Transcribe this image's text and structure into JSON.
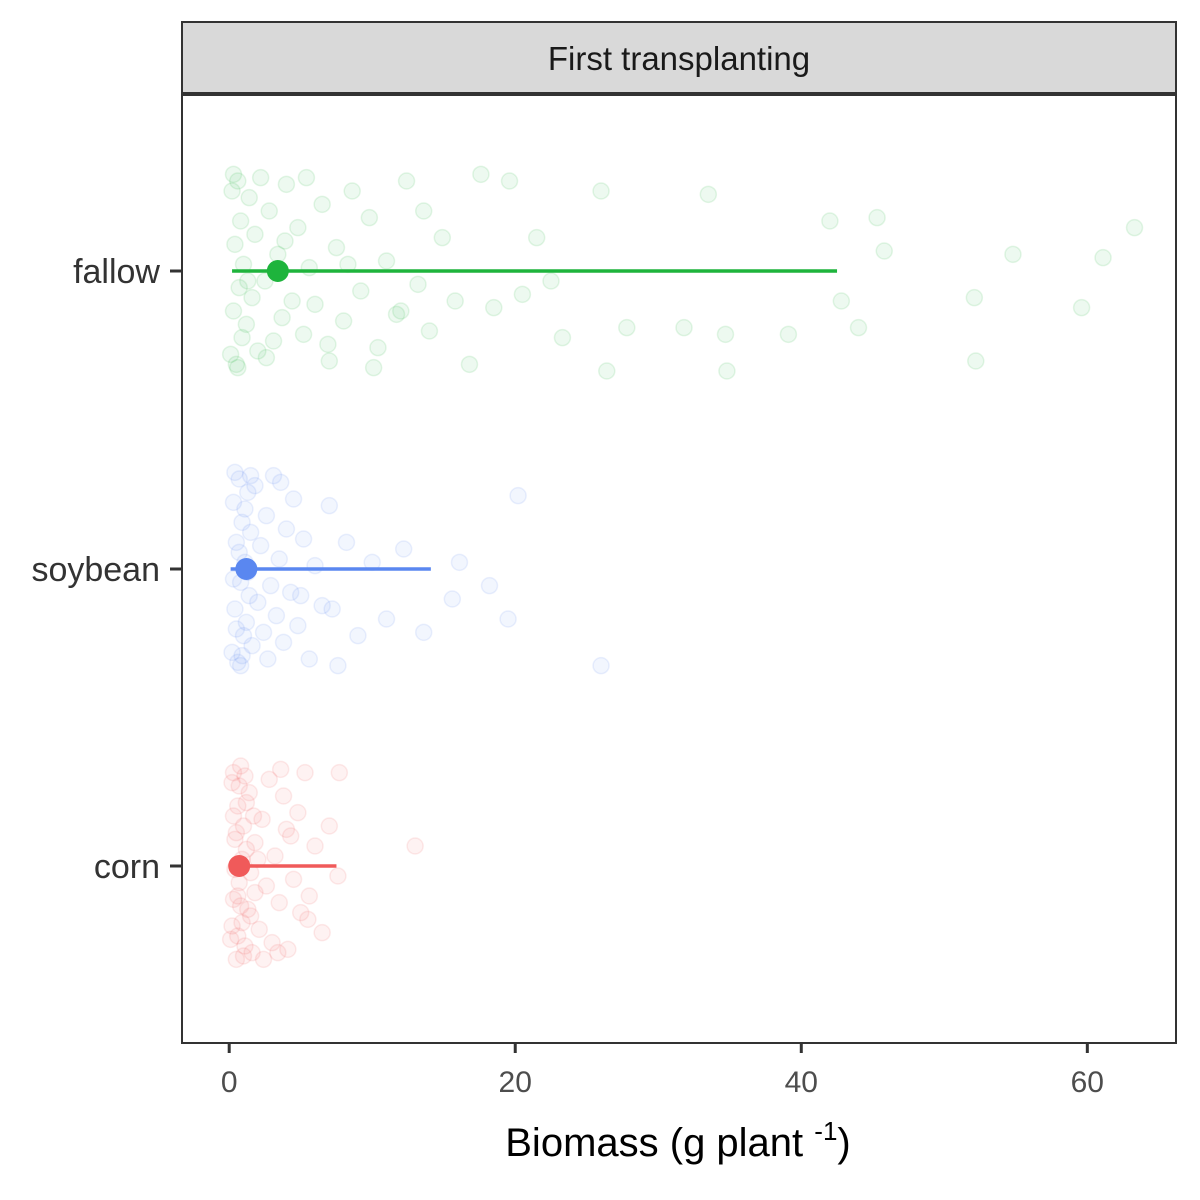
{
  "chart_data": {
    "type": "scatter",
    "facet_title": "First transplanting",
    "xlabel_main": "Biomass (g plant ",
    "xlabel_sup": "-1",
    "xlabel_close": ")",
    "ylabel": "",
    "xlim": [
      -3.3,
      66.2
    ],
    "xticks": [
      0,
      20,
      40,
      60
    ],
    "xtick_labels": [
      "0",
      "20",
      "40",
      "60"
    ],
    "categories": [
      "corn",
      "soybean",
      "fallow"
    ],
    "colors": {
      "corn": "#F05A5A",
      "soybean": "#5A87F0",
      "fallow": "#1EB43C"
    },
    "grid": false,
    "legend": "none",
    "series": [
      {
        "category": "corn",
        "median": 0.7,
        "interval": [
          0.3,
          7.5
        ],
        "points": [
          [
            0.1,
            0.22
          ],
          [
            0.2,
            -0.25
          ],
          [
            0.3,
            0.1
          ],
          [
            0.4,
            -0.08
          ],
          [
            0.5,
            0.28
          ],
          [
            0.6,
            -0.18
          ],
          [
            0.7,
            0.05
          ],
          [
            0.8,
            -0.3
          ],
          [
            0.9,
            0.17
          ],
          [
            1.0,
            -0.12
          ],
          [
            1.1,
            0.24
          ],
          [
            1.2,
            -0.05
          ],
          [
            1.3,
            0.13
          ],
          [
            1.4,
            -0.22
          ],
          [
            1.5,
            0.02
          ],
          [
            1.6,
            0.26
          ],
          [
            1.7,
            -0.15
          ],
          [
            1.8,
            0.08
          ],
          [
            0.2,
            0.18
          ],
          [
            0.3,
            -0.28
          ],
          [
            0.4,
            0.01
          ],
          [
            0.5,
            -0.1
          ],
          [
            0.6,
            0.21
          ],
          [
            0.7,
            -0.24
          ],
          [
            0.8,
            0.12
          ],
          [
            0.9,
            -0.02
          ],
          [
            1.0,
            0.27
          ],
          [
            1.2,
            -0.19
          ],
          [
            1.5,
            0.15
          ],
          [
            1.8,
            -0.07
          ],
          [
            2.1,
            0.19
          ],
          [
            2.3,
            -0.14
          ],
          [
            2.6,
            0.06
          ],
          [
            2.8,
            -0.26
          ],
          [
            3.0,
            0.23
          ],
          [
            3.2,
            -0.03
          ],
          [
            3.5,
            0.11
          ],
          [
            3.8,
            -0.21
          ],
          [
            4.1,
            0.25
          ],
          [
            4.3,
            -0.09
          ],
          [
            4.5,
            0.04
          ],
          [
            4.8,
            -0.16
          ],
          [
            5.0,
            0.14
          ],
          [
            5.3,
            -0.28
          ],
          [
            5.6,
            0.09
          ],
          [
            6.0,
            -0.06
          ],
          [
            6.5,
            0.2
          ],
          [
            7.0,
            -0.12
          ],
          [
            7.6,
            0.03
          ],
          [
            7.7,
            -0.28
          ],
          [
            13.0,
            -0.06
          ],
          [
            0.3,
            -0.15
          ],
          [
            0.6,
            0.09
          ],
          [
            1.1,
            -0.27
          ],
          [
            2.0,
            -0.02
          ],
          [
            3.4,
            0.26
          ],
          [
            4.0,
            -0.11
          ],
          [
            5.5,
            0.16
          ],
          [
            3.6,
            -0.29
          ],
          [
            2.4,
            0.28
          ]
        ]
      },
      {
        "category": "soybean",
        "median": 1.2,
        "interval": [
          0.1,
          14.1
        ],
        "points": [
          [
            0.2,
            0.25
          ],
          [
            0.3,
            -0.2
          ],
          [
            0.4,
            0.12
          ],
          [
            0.5,
            -0.08
          ],
          [
            0.6,
            0.28
          ],
          [
            0.7,
            -0.27
          ],
          [
            0.8,
            0.04
          ],
          [
            0.9,
            -0.14
          ],
          [
            1.0,
            0.2
          ],
          [
            1.1,
            -0.02
          ],
          [
            1.2,
            0.16
          ],
          [
            1.3,
            -0.23
          ],
          [
            1.4,
            0.08
          ],
          [
            1.5,
            -0.11
          ],
          [
            0.3,
            0.03
          ],
          [
            0.5,
            0.18
          ],
          [
            0.7,
            -0.05
          ],
          [
            0.9,
            0.26
          ],
          [
            1.1,
            -0.18
          ],
          [
            1.3,
            0.01
          ],
          [
            1.6,
            0.23
          ],
          [
            1.8,
            -0.25
          ],
          [
            2.0,
            0.1
          ],
          [
            2.2,
            -0.07
          ],
          [
            2.4,
            0.19
          ],
          [
            2.6,
            -0.16
          ],
          [
            2.9,
            0.05
          ],
          [
            3.1,
            -0.28
          ],
          [
            3.3,
            0.14
          ],
          [
            3.5,
            -0.03
          ],
          [
            3.8,
            0.22
          ],
          [
            4.0,
            -0.12
          ],
          [
            4.3,
            0.07
          ],
          [
            4.5,
            -0.21
          ],
          [
            4.8,
            0.17
          ],
          [
            5.2,
            -0.09
          ],
          [
            5.6,
            0.27
          ],
          [
            6.0,
            -0.01
          ],
          [
            6.5,
            0.11
          ],
          [
            7.0,
            -0.19
          ],
          [
            7.6,
            0.29
          ],
          [
            8.2,
            -0.08
          ],
          [
            9.0,
            0.2
          ],
          [
            10.0,
            -0.02
          ],
          [
            11.0,
            0.15
          ],
          [
            12.2,
            -0.06
          ],
          [
            13.6,
            0.19
          ],
          [
            15.6,
            0.09
          ],
          [
            16.1,
            -0.02
          ],
          [
            18.2,
            0.05
          ],
          [
            19.5,
            0.15
          ],
          [
            20.2,
            -0.22
          ],
          [
            26.0,
            0.29
          ],
          [
            0.4,
            -0.29
          ],
          [
            0.8,
            0.29
          ],
          [
            1.5,
            -0.28
          ],
          [
            2.7,
            0.27
          ],
          [
            3.6,
            -0.26
          ],
          [
            5.0,
            0.08
          ],
          [
            7.2,
            0.12
          ]
        ]
      },
      {
        "category": "fallow",
        "median": 3.4,
        "interval": [
          0.2,
          42.5
        ],
        "points": [
          [
            0.1,
            0.25
          ],
          [
            0.2,
            -0.24
          ],
          [
            0.3,
            0.12
          ],
          [
            0.4,
            -0.08
          ],
          [
            0.5,
            0.28
          ],
          [
            0.6,
            -0.27
          ],
          [
            0.7,
            0.05
          ],
          [
            0.8,
            -0.15
          ],
          [
            0.9,
            0.2
          ],
          [
            1.0,
            -0.02
          ],
          [
            1.2,
            0.16
          ],
          [
            1.4,
            -0.22
          ],
          [
            1.6,
            0.08
          ],
          [
            1.8,
            -0.11
          ],
          [
            2.0,
            0.24
          ],
          [
            2.2,
            -0.28
          ],
          [
            2.5,
            0.03
          ],
          [
            2.8,
            -0.18
          ],
          [
            3.1,
            0.21
          ],
          [
            3.4,
            -0.05
          ],
          [
            3.7,
            0.14
          ],
          [
            4.0,
            -0.26
          ],
          [
            4.4,
            0.09
          ],
          [
            4.8,
            -0.13
          ],
          [
            5.2,
            0.19
          ],
          [
            5.6,
            -0.01
          ],
          [
            6.0,
            0.1
          ],
          [
            6.5,
            -0.2
          ],
          [
            7.0,
            0.27
          ],
          [
            7.5,
            -0.07
          ],
          [
            8.0,
            0.15
          ],
          [
            8.6,
            -0.24
          ],
          [
            9.2,
            0.06
          ],
          [
            9.8,
            -0.16
          ],
          [
            10.4,
            0.23
          ],
          [
            11.0,
            -0.03
          ],
          [
            11.7,
            0.13
          ],
          [
            12.4,
            -0.27
          ],
          [
            13.2,
            0.04
          ],
          [
            14.0,
            0.18
          ],
          [
            14.9,
            -0.1
          ],
          [
            15.8,
            0.09
          ],
          [
            16.8,
            0.28
          ],
          [
            17.6,
            -0.29
          ],
          [
            18.5,
            0.11
          ],
          [
            19.6,
            -0.27
          ],
          [
            20.5,
            0.07
          ],
          [
            21.5,
            -0.1
          ],
          [
            22.5,
            0.03
          ],
          [
            23.3,
            0.2
          ],
          [
            26.0,
            -0.24
          ],
          [
            26.4,
            0.3
          ],
          [
            27.8,
            0.17
          ],
          [
            31.8,
            0.17
          ],
          [
            33.5,
            -0.23
          ],
          [
            34.7,
            0.19
          ],
          [
            34.8,
            0.3
          ],
          [
            39.1,
            0.19
          ],
          [
            42.0,
            -0.15
          ],
          [
            42.8,
            0.09
          ],
          [
            44.0,
            0.17
          ],
          [
            45.3,
            -0.16
          ],
          [
            45.8,
            -0.06
          ],
          [
            52.2,
            0.27
          ],
          [
            52.1,
            0.08
          ],
          [
            54.8,
            -0.05
          ],
          [
            59.6,
            0.11
          ],
          [
            61.1,
            -0.04
          ],
          [
            63.3,
            -0.13
          ],
          [
            0.3,
            -0.29
          ],
          [
            0.6,
            0.29
          ],
          [
            1.3,
            0.03
          ],
          [
            2.6,
            0.26
          ],
          [
            3.9,
            -0.09
          ],
          [
            5.4,
            -0.28
          ],
          [
            6.9,
            0.22
          ],
          [
            8.3,
            -0.02
          ],
          [
            10.1,
            0.29
          ],
          [
            12.0,
            0.12
          ],
          [
            13.6,
            -0.18
          ]
        ]
      }
    ]
  }
}
